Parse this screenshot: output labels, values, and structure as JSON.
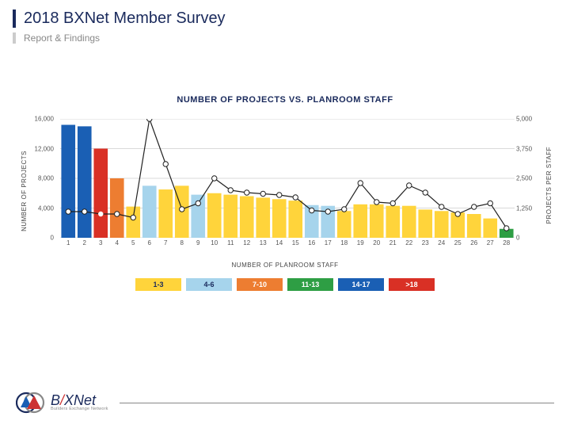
{
  "header": {
    "title": "2018 BXNet Member Survey",
    "subtitle": "Report & Findings",
    "title_color": "#1a2a5c",
    "accent_bar_color": "#1a2a5c",
    "sub_bar_color": "#cccccc",
    "subtitle_color": "#888888"
  },
  "chart": {
    "title": "NUMBER OF PROJECTS VS. PLANROOM STAFF",
    "xlabel": "NUMBER OF PLANROOM STAFF",
    "ylabel_left": "NUMBER OF PROJECTS",
    "ylabel_right": "PROJECTS PER STAFF",
    "title_fontsize": 11,
    "label_fontsize": 8,
    "background_color": "#ffffff",
    "grid_color": "#d9d9d9",
    "x_categories": [
      "1",
      "2",
      "3",
      "4",
      "5",
      "6",
      "7",
      "8",
      "9",
      "10",
      "11",
      "12",
      "13",
      "14",
      "15",
      "16",
      "17",
      "18",
      "19",
      "20",
      "21",
      "22",
      "23",
      "24",
      "25",
      "26",
      "27",
      "28"
    ],
    "y_left": {
      "min": 0,
      "max": 16000,
      "ticks": [
        0,
        4000,
        8000,
        12000,
        16000
      ],
      "tick_labels": [
        "0",
        "4,000",
        "8,000",
        "12,000",
        "16,000"
      ]
    },
    "y_right": {
      "min": 0,
      "max": 5000,
      "ticks": [
        0,
        1250,
        2500,
        3750,
        5000
      ],
      "tick_labels": [
        "0",
        "1,250",
        "2,500",
        "3,750",
        "5,000"
      ]
    },
    "bars": {
      "values": [
        15200,
        15000,
        12000,
        8000,
        4200,
        7000,
        6500,
        7000,
        5800,
        6000,
        5800,
        5600,
        5400,
        5200,
        5000,
        4400,
        4300,
        3600,
        4500,
        4500,
        4300,
        4300,
        3800,
        3600,
        3400,
        3200,
        2600,
        1200
      ],
      "colors": [
        "#1a5fb4",
        "#1a5fb4",
        "#d93025",
        "#ed7d31",
        "#ffd43b",
        "#a6d4ec",
        "#ffd43b",
        "#ffd43b",
        "#a6d4ec",
        "#ffd43b",
        "#ffd43b",
        "#ffd43b",
        "#ffd43b",
        "#ffd43b",
        "#ffd43b",
        "#a6d4ec",
        "#a6d4ec",
        "#ffd43b",
        "#ffd43b",
        "#ffd43b",
        "#ffd43b",
        "#ffd43b",
        "#ffd43b",
        "#ffd43b",
        "#ffd43b",
        "#ffd43b",
        "#ffd43b",
        "#2e9e44"
      ],
      "width": 0.86
    },
    "line": {
      "values": [
        1100,
        1100,
        1000,
        1000,
        850,
        5000,
        3100,
        1200,
        1450,
        2500,
        2000,
        1900,
        1850,
        1800,
        1700,
        1150,
        1100,
        1200,
        2300,
        1500,
        1450,
        2200,
        1900,
        1300,
        1000,
        1300,
        1450,
        400
      ],
      "stroke": "#222222",
      "stroke_width": 1.2,
      "marker_radius": 3.2,
      "marker_fill": "#ffffff",
      "marker_stroke": "#222222",
      "solid_marker_index": 2
    }
  },
  "legend": {
    "items": [
      {
        "label": "1-3",
        "color": "#ffd43b",
        "text_color": "#1a2a5c"
      },
      {
        "label": "4-6",
        "color": "#a6d4ec",
        "text_color": "#1a2a5c"
      },
      {
        "label": "7-10",
        "color": "#ed7d31",
        "text_color": "#ffffff"
      },
      {
        "label": "11-13",
        "color": "#2e9e44",
        "text_color": "#ffffff"
      },
      {
        "label": "14-17",
        "color": "#1a5fb4",
        "text_color": "#ffffff"
      },
      {
        "label": ">18",
        "color": "#d93025",
        "text_color": "#ffffff"
      }
    ]
  },
  "footer": {
    "logo_main_pre": "B",
    "logo_main_mid": "X",
    "logo_main_post": "Net",
    "logo_sub": "Builders Exchange Network"
  }
}
